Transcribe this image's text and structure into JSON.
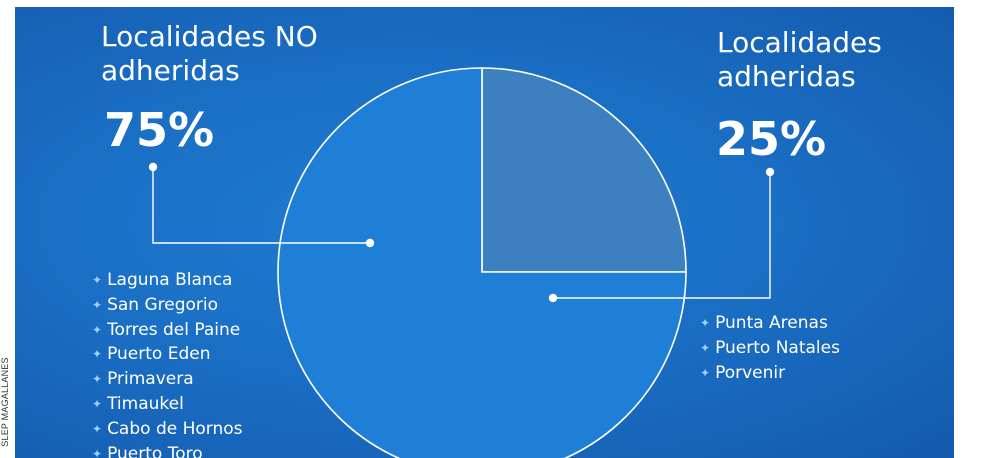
{
  "credit": "SLEP MAGALLANES",
  "chart_data": {
    "type": "pie",
    "title": "",
    "slices": [
      {
        "label": "Localidades NO adheridas",
        "value": 75,
        "value_label": "75%",
        "color": "#1f7fd6"
      },
      {
        "label": "Localidades adheridas",
        "value": 25,
        "value_label": "25%",
        "color": "#3d80c0"
      }
    ],
    "legend": {
      "no_adheridas": {
        "title_line1": "Localidades NO",
        "title_line2": "adheridas",
        "percent": "75%",
        "items": [
          "Laguna Blanca",
          "San Gregorio",
          "Torres del Paine",
          "Puerto Eden",
          "Primavera",
          "Timaukel",
          "Cabo de Hornos",
          "Puerto Toro"
        ]
      },
      "adheridas": {
        "title_line1": "Localidades",
        "title_line2": "adheridas",
        "percent": "25%",
        "items": [
          "Punta Arenas",
          "Puerto Natales",
          "Porvenir"
        ]
      }
    },
    "colors": {
      "outline": "#ffffff",
      "connector": "#ffffff",
      "bullet": "#9fd0ff"
    }
  }
}
